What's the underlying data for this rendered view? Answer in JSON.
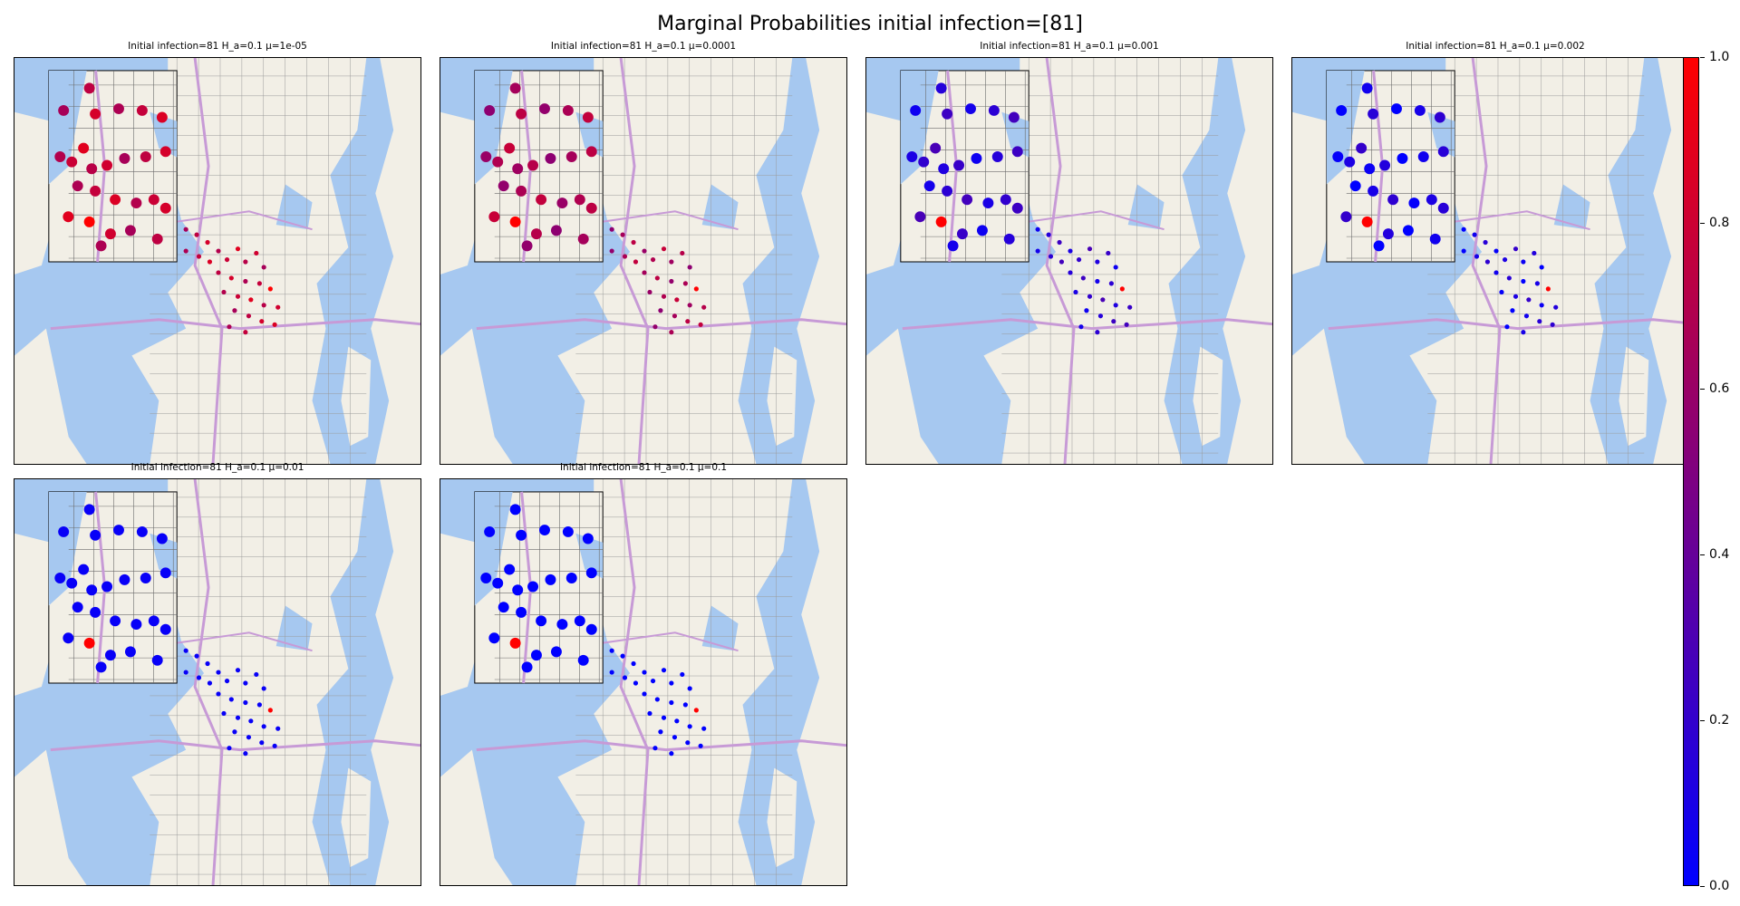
{
  "figure_title": "Marginal Probabilities initial infection=[81]",
  "colors": {
    "water": "#a6c8f0",
    "land": "#f2efe6",
    "low": "#0000ff",
    "high": "#ff0000"
  },
  "chart_data": {
    "type": "scatter",
    "subplots": [
      {
        "title": "Initial infection=81 H_a=0.1 μ=1e-05",
        "mu": 1e-05,
        "level": 0.78
      },
      {
        "title": "Initial infection=81 H_a=0.1 μ=0.0001",
        "mu": 0.0001,
        "level": 0.68
      },
      {
        "title": "Initial infection=81 H_a=0.1 μ=0.001",
        "mu": 0.001,
        "level": 0.18
      },
      {
        "title": "Initial infection=81 H_a=0.1 μ=0.002",
        "mu": 0.002,
        "level": 0.1
      },
      {
        "title": "Initial infection=81 H_a=0.1 μ=0.01",
        "mu": 0.01,
        "level": 0.03
      },
      {
        "title": "Initial infection=81 H_a=0.1 μ=0.1",
        "mu": 0.1,
        "level": 0.0
      }
    ],
    "initial_infection_node": 81,
    "colorbar": {
      "ylim": [
        0.0,
        1.0
      ],
      "ticks": [
        "0.0",
        "0.2",
        "0.4",
        "0.6",
        "0.8",
        "1.0"
      ],
      "colormap": [
        "#0000ff",
        "#ff0000"
      ]
    }
  }
}
